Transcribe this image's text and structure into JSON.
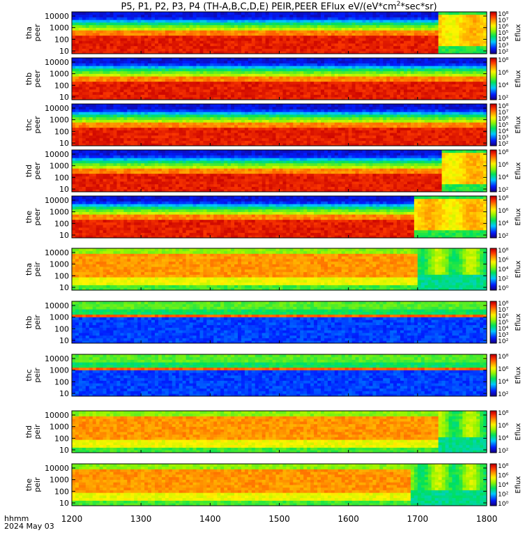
{
  "chart_data": {
    "type": "heatmap",
    "title_main": "P5, P1, P2, P3, P4 (TH-A,B,C,D,E) PEIR,PEER EFlux eV/(eV*cm",
    "title_sup": "2",
    "title_tail": "*sec*sr)",
    "x_label_row1": "hhmm",
    "x_label_row2": "2024 May 03",
    "x_ticks": [
      "1200",
      "1300",
      "1400",
      "1500",
      "1600",
      "1700",
      "1800"
    ],
    "x_range": [
      1200,
      1800
    ],
    "y_ticks": [
      "10",
      "100",
      "1000",
      "10000"
    ],
    "colorbar_label": "Eflux",
    "panels": [
      {
        "probe": "tha",
        "species": "peer",
        "kind": "electron",
        "cb_ticks": [
          "10²",
          "10³",
          "10⁴",
          "10⁵",
          "10⁶",
          "10⁷",
          "10⁸"
        ],
        "transition_time": 1730
      },
      {
        "probe": "thb",
        "species": "peer",
        "kind": "electron",
        "cb_ticks": [
          "10²",
          "10⁴",
          "10⁶",
          "10⁸"
        ]
      },
      {
        "probe": "thc",
        "species": "peer",
        "kind": "electron",
        "cb_ticks": [
          "10²",
          "10³",
          "10⁴",
          "10⁵",
          "10⁶",
          "10⁷",
          "10⁸"
        ]
      },
      {
        "probe": "thd",
        "species": "peer",
        "kind": "electron",
        "cb_ticks": [
          "10²",
          "10⁴",
          "10⁶",
          "10⁸"
        ],
        "transition_time": 1735
      },
      {
        "probe": "the",
        "species": "peer",
        "kind": "electron",
        "cb_ticks": [
          "10²",
          "10⁴",
          "10⁶",
          "10⁸"
        ],
        "transition_time": 1695
      },
      {
        "probe": "tha",
        "species": "peir",
        "kind": "ion",
        "cb_ticks": [
          "10⁰",
          "10²",
          "10⁴",
          "10⁶",
          "10⁸"
        ],
        "transition_time": 1700
      },
      {
        "probe": "thb",
        "species": "peir",
        "kind": "solarwind",
        "cb_ticks": [
          "10²",
          "10³",
          "10⁴",
          "10⁵",
          "10⁶",
          "10⁷",
          "10⁸"
        ]
      },
      {
        "probe": "thc",
        "species": "peir",
        "kind": "solarwind",
        "cb_ticks": [
          "10²",
          "10⁴",
          "10⁶",
          "10⁸"
        ]
      },
      {
        "probe": "thd",
        "species": "peir",
        "kind": "ion",
        "cb_ticks": [
          "10²",
          "10⁴",
          "10⁶",
          "10⁸"
        ],
        "transition_time": 1730
      },
      {
        "probe": "the",
        "species": "peir",
        "kind": "ion",
        "cb_ticks": [
          "10⁰",
          "10²",
          "10⁴",
          "10⁶",
          "10⁸"
        ],
        "transition_time": 1690
      }
    ]
  }
}
